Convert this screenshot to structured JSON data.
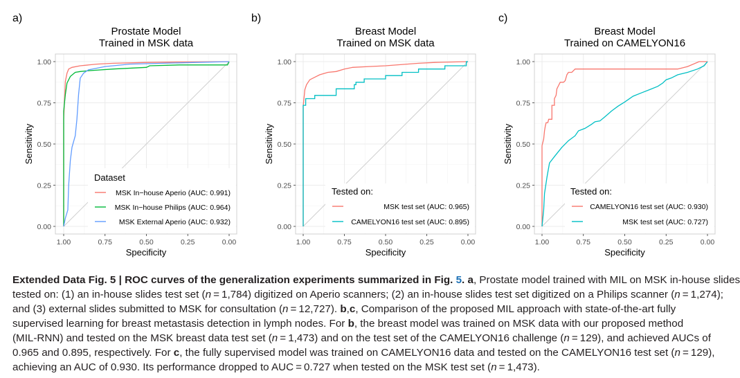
{
  "chart_data": [
    {
      "type": "line",
      "panel_label": "a)",
      "title": [
        "Prostate Model",
        "Trained in MSK data"
      ],
      "xlabel": "Specificity",
      "ylabel": "Sensitivity",
      "xlim": [
        1.0,
        0.0
      ],
      "ylim": [
        0.0,
        1.0
      ],
      "x_reversed": true,
      "xticks": [
        "1.00",
        "0.75",
        "0.50",
        "0.25",
        "0.00"
      ],
      "yticks": [
        "0.00",
        "0.25",
        "0.50",
        "0.75",
        "1.00"
      ],
      "grid": true,
      "diagonal_reference": true,
      "legend": {
        "title": "Dataset",
        "placement": "bottom-right"
      },
      "series": [
        {
          "name": "MSK In−house Aperio (AUC: 0.991)",
          "color": "#F8766D",
          "points": [
            [
              1,
              0
            ],
            [
              1,
              0.65
            ],
            [
              0.99,
              0.88
            ],
            [
              0.98,
              0.93
            ],
            [
              0.97,
              0.955
            ],
            [
              0.95,
              0.965
            ],
            [
              0.9,
              0.975
            ],
            [
              0.8,
              0.985
            ],
            [
              0.7,
              0.99
            ],
            [
              0.5,
              0.995
            ],
            [
              0.3,
              0.998
            ],
            [
              0,
              1
            ]
          ]
        },
        {
          "name": "MSK In−house Philips (AUC: 0.964)",
          "color": "#00BA38",
          "points": [
            [
              1,
              0
            ],
            [
              1,
              0.05
            ],
            [
              1,
              0.7
            ],
            [
              0.99,
              0.8
            ],
            [
              0.98,
              0.87
            ],
            [
              0.96,
              0.91
            ],
            [
              0.93,
              0.935
            ],
            [
              0.9,
              0.94
            ],
            [
              0.85,
              0.945
            ],
            [
              0.7,
              0.955
            ],
            [
              0.5,
              0.965
            ],
            [
              0.48,
              0.975
            ],
            [
              0.3,
              0.98
            ],
            [
              0.1,
              0.98
            ],
            [
              0.01,
              0.98
            ],
            [
              0,
              1
            ]
          ]
        },
        {
          "name": "MSK External Aperio (AUC: 0.932)",
          "color": "#619CFF",
          "points": [
            [
              1,
              0
            ],
            [
              0.99,
              0.05
            ],
            [
              0.975,
              0.1
            ],
            [
              0.97,
              0.25
            ],
            [
              0.96,
              0.4
            ],
            [
              0.95,
              0.48
            ],
            [
              0.93,
              0.55
            ],
            [
              0.92,
              0.65
            ],
            [
              0.91,
              0.8
            ],
            [
              0.9,
              0.9
            ],
            [
              0.88,
              0.93
            ],
            [
              0.85,
              0.95
            ],
            [
              0.75,
              0.97
            ],
            [
              0.6,
              0.985
            ],
            [
              0.4,
              0.99
            ],
            [
              0.2,
              0.995
            ],
            [
              0,
              1
            ]
          ]
        }
      ]
    },
    {
      "type": "line",
      "panel_label": "b)",
      "title": [
        "Breast Model",
        "Trained on MSK data"
      ],
      "xlabel": "Specificity",
      "ylabel": "Sensitivity",
      "xlim": [
        1.0,
        0.0
      ],
      "ylim": [
        0.0,
        1.0
      ],
      "x_reversed": true,
      "xticks": [
        "1.00",
        "0.75",
        "0.50",
        "0.25",
        "0.00"
      ],
      "yticks": [
        "0.00",
        "0.25",
        "0.50",
        "0.75",
        "1.00"
      ],
      "grid": true,
      "diagonal_reference": true,
      "legend": {
        "title": "Tested on:",
        "placement": "bottom-right"
      },
      "series": [
        {
          "name": "MSK test set (AUC: 0.965)",
          "color": "#F8766D",
          "points": [
            [
              1,
              0
            ],
            [
              1,
              0.73
            ],
            [
              0.99,
              0.83
            ],
            [
              0.98,
              0.86
            ],
            [
              0.96,
              0.89
            ],
            [
              0.93,
              0.905
            ],
            [
              0.9,
              0.92
            ],
            [
              0.85,
              0.935
            ],
            [
              0.8,
              0.94
            ],
            [
              0.75,
              0.955
            ],
            [
              0.7,
              0.965
            ],
            [
              0.6,
              0.97
            ],
            [
              0.5,
              0.975
            ],
            [
              0.3,
              0.99
            ],
            [
              0.2,
              0.995
            ],
            [
              0,
              1
            ]
          ]
        },
        {
          "name": "CAMELYON16 test set (AUC: 0.895)",
          "color": "#00BFC4",
          "points": [
            [
              1,
              0
            ],
            [
              1,
              0.735
            ],
            [
              0.985,
              0.735
            ],
            [
              0.985,
              0.775
            ],
            [
              0.93,
              0.775
            ],
            [
              0.93,
              0.795
            ],
            [
              0.8,
              0.795
            ],
            [
              0.8,
              0.835
            ],
            [
              0.69,
              0.835
            ],
            [
              0.69,
              0.86
            ],
            [
              0.68,
              0.86
            ],
            [
              0.68,
              0.875
            ],
            [
              0.63,
              0.875
            ],
            [
              0.63,
              0.895
            ],
            [
              0.5,
              0.895
            ],
            [
              0.5,
              0.915
            ],
            [
              0.4,
              0.915
            ],
            [
              0.4,
              0.935
            ],
            [
              0.3,
              0.935
            ],
            [
              0.3,
              0.955
            ],
            [
              0.14,
              0.955
            ],
            [
              0.14,
              0.975
            ],
            [
              0.01,
              0.975
            ],
            [
              0.01,
              1
            ],
            [
              0,
              1
            ]
          ]
        }
      ]
    },
    {
      "type": "line",
      "panel_label": "c)",
      "title": [
        "Breast Model",
        "Trained on CAMELYON16"
      ],
      "xlabel": "Specificity",
      "ylabel": "Sensitivity",
      "xlim": [
        1.0,
        0.0
      ],
      "ylim": [
        0.0,
        1.0
      ],
      "x_reversed": true,
      "xticks": [
        "1.00",
        "0.75",
        "0.50",
        "0.25",
        "0.00"
      ],
      "yticks": [
        "0.00",
        "0.25",
        "0.50",
        "0.75",
        "1.00"
      ],
      "grid": true,
      "diagonal_reference": true,
      "legend": {
        "title": "Tested on:",
        "placement": "bottom-right"
      },
      "series": [
        {
          "name": "CAMELYON16 test set (AUC: 0.930)",
          "color": "#F8766D",
          "points": [
            [
              1,
              0
            ],
            [
              1,
              0.49
            ],
            [
              0.99,
              0.53
            ],
            [
              0.985,
              0.58
            ],
            [
              0.98,
              0.61
            ],
            [
              0.975,
              0.63
            ],
            [
              0.965,
              0.63
            ],
            [
              0.96,
              0.65
            ],
            [
              0.94,
              0.65
            ],
            [
              0.94,
              0.735
            ],
            [
              0.925,
              0.735
            ],
            [
              0.925,
              0.775
            ],
            [
              0.915,
              0.795
            ],
            [
              0.91,
              0.835
            ],
            [
              0.9,
              0.855
            ],
            [
              0.89,
              0.875
            ],
            [
              0.87,
              0.875
            ],
            [
              0.86,
              0.885
            ],
            [
              0.85,
              0.92
            ],
            [
              0.84,
              0.935
            ],
            [
              0.82,
              0.935
            ],
            [
              0.8,
              0.955
            ],
            [
              0.5,
              0.955
            ],
            [
              0.18,
              0.955
            ],
            [
              0.12,
              0.97
            ],
            [
              0.05,
              1
            ],
            [
              0,
              1
            ]
          ]
        },
        {
          "name": "MSK test set (AUC: 0.727)",
          "color": "#00BFC4",
          "points": [
            [
              1,
              0
            ],
            [
              0.99,
              0.1
            ],
            [
              0.985,
              0.2
            ],
            [
              0.97,
              0.3
            ],
            [
              0.955,
              0.385
            ],
            [
              0.92,
              0.43
            ],
            [
              0.88,
              0.48
            ],
            [
              0.84,
              0.52
            ],
            [
              0.8,
              0.55
            ],
            [
              0.78,
              0.58
            ],
            [
              0.74,
              0.595
            ],
            [
              0.7,
              0.62
            ],
            [
              0.68,
              0.635
            ],
            [
              0.65,
              0.64
            ],
            [
              0.62,
              0.665
            ],
            [
              0.58,
              0.7
            ],
            [
              0.54,
              0.73
            ],
            [
              0.5,
              0.755
            ],
            [
              0.45,
              0.79
            ],
            [
              0.4,
              0.81
            ],
            [
              0.35,
              0.83
            ],
            [
              0.3,
              0.85
            ],
            [
              0.27,
              0.87
            ],
            [
              0.25,
              0.89
            ],
            [
              0.22,
              0.9
            ],
            [
              0.18,
              0.92
            ],
            [
              0.12,
              0.935
            ],
            [
              0.06,
              0.955
            ],
            [
              0.02,
              0.975
            ],
            [
              0,
              1
            ]
          ]
        }
      ]
    }
  ],
  "caption": {
    "lines": [
      [
        {
          "t": "Extended Data Fig. 5 | ROC curves of the generalization experiments summarized in Fig. ",
          "s": "b"
        },
        {
          "t": "5",
          "s": "b blue"
        },
        {
          "t": ". a",
          "s": "b"
        },
        {
          "t": ", Prostate model trained with MIL on MSK in-house slides",
          "s": ""
        }
      ],
      [
        {
          "t": "tested on: (1) an in-house slides test set (",
          "s": ""
        },
        {
          "t": "n",
          "s": "i"
        },
        {
          "t": " = 1,784) digitized on Aperio scanners; (2) an in-house slides test set digitized on a Philips scanner (",
          "s": ""
        },
        {
          "t": "n",
          "s": "i"
        },
        {
          "t": " = 1,274);",
          "s": ""
        }
      ],
      [
        {
          "t": "and (3) external slides submitted to MSK for consultation (",
          "s": ""
        },
        {
          "t": "n",
          "s": "i"
        },
        {
          "t": " = 12,727). ",
          "s": ""
        },
        {
          "t": "b",
          "s": "b"
        },
        {
          "t": ",",
          "s": ""
        },
        {
          "t": "c",
          "s": "b"
        },
        {
          "t": ", Comparison of the proposed MIL approach with state-of-the-art fully",
          "s": ""
        }
      ],
      [
        {
          "t": "supervised learning for breast metastasis detection in lymph nodes. For ",
          "s": ""
        },
        {
          "t": "b",
          "s": "b"
        },
        {
          "t": ", the breast model was trained on MSK data with our proposed method",
          "s": ""
        }
      ],
      [
        {
          "t": "(MIL-RNN) and tested on the MSK breast data test set (",
          "s": ""
        },
        {
          "t": "n",
          "s": "i"
        },
        {
          "t": " = 1,473) and on the test set of the CAMELYON16 challenge (",
          "s": ""
        },
        {
          "t": "n",
          "s": "i"
        },
        {
          "t": " = 129), and achieved AUCs of",
          "s": ""
        }
      ],
      [
        {
          "t": "0.965 and 0.895, respectively. For ",
          "s": ""
        },
        {
          "t": "c",
          "s": "b"
        },
        {
          "t": ", the fully supervised model was trained on CAMELYON16 data and tested on the CAMELYON16 test set (",
          "s": ""
        },
        {
          "t": "n",
          "s": "i"
        },
        {
          "t": " = 129),",
          "s": ""
        }
      ],
      [
        {
          "t": "achieving an AUC of 0.930. Its performance dropped to AUC = 0.727 when tested on the MSK test set (",
          "s": ""
        },
        {
          "t": "n",
          "s": "i"
        },
        {
          "t": " = 1,473).",
          "s": ""
        }
      ]
    ]
  }
}
